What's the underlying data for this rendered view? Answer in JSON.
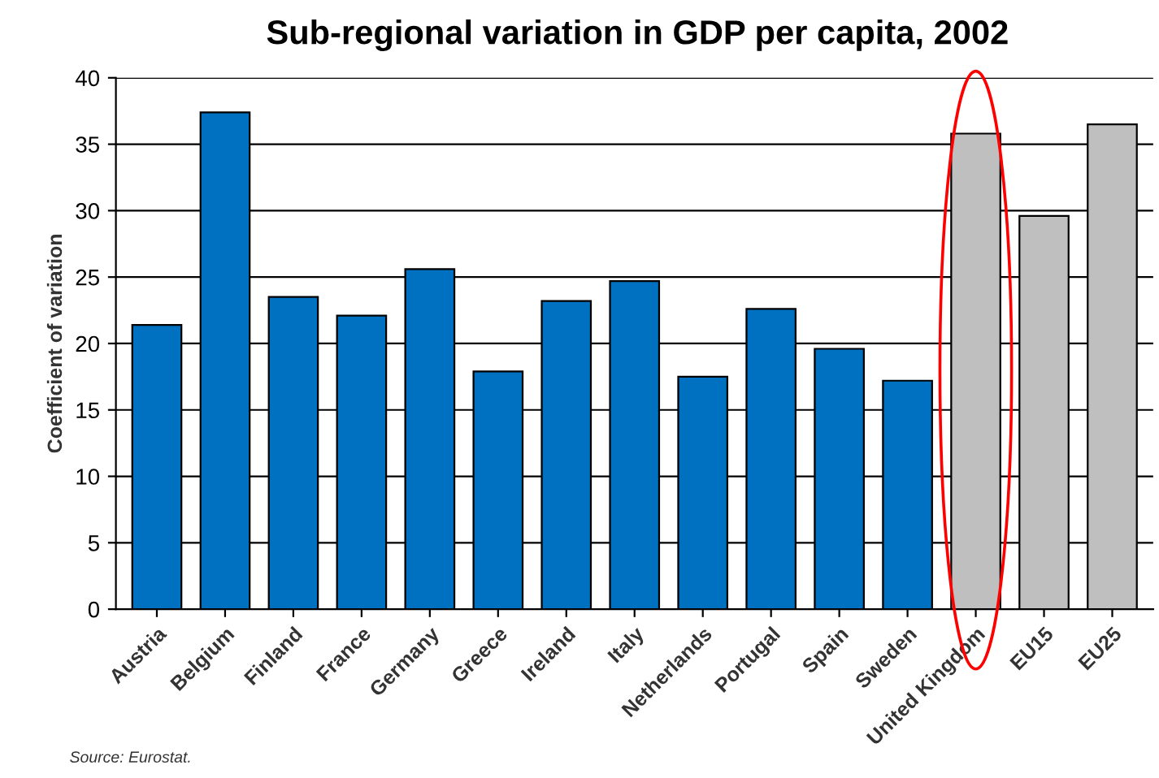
{
  "chart_data": {
    "type": "bar",
    "title": "Sub-regional variation in GDP per capita, 2002",
    "ylabel": "Coefficient of variation",
    "categories": [
      "Austria",
      "Belgium",
      "Finland",
      "France",
      "Germany",
      "Greece",
      "Ireland",
      "Italy",
      "Netherlands",
      "Portugal",
      "Spain",
      "Sweden",
      "United Kingdom",
      "EU15",
      "EU25"
    ],
    "values": [
      21.4,
      37.4,
      23.5,
      22.1,
      25.6,
      17.9,
      23.2,
      24.7,
      17.5,
      22.6,
      19.6,
      17.2,
      35.8,
      29.6,
      36.5
    ],
    "colors": [
      "#0070c0",
      "#0070c0",
      "#0070c0",
      "#0070c0",
      "#0070c0",
      "#0070c0",
      "#0070c0",
      "#0070c0",
      "#0070c0",
      "#0070c0",
      "#0070c0",
      "#0070c0",
      "#bfbfbf",
      "#bfbfbf",
      "#bfbfbf"
    ],
    "ylim": [
      0,
      40
    ],
    "yticks": [
      0,
      5,
      10,
      15,
      20,
      25,
      30,
      35,
      40
    ],
    "grid": "y",
    "annotations": [
      "Source: Eurostat."
    ]
  }
}
